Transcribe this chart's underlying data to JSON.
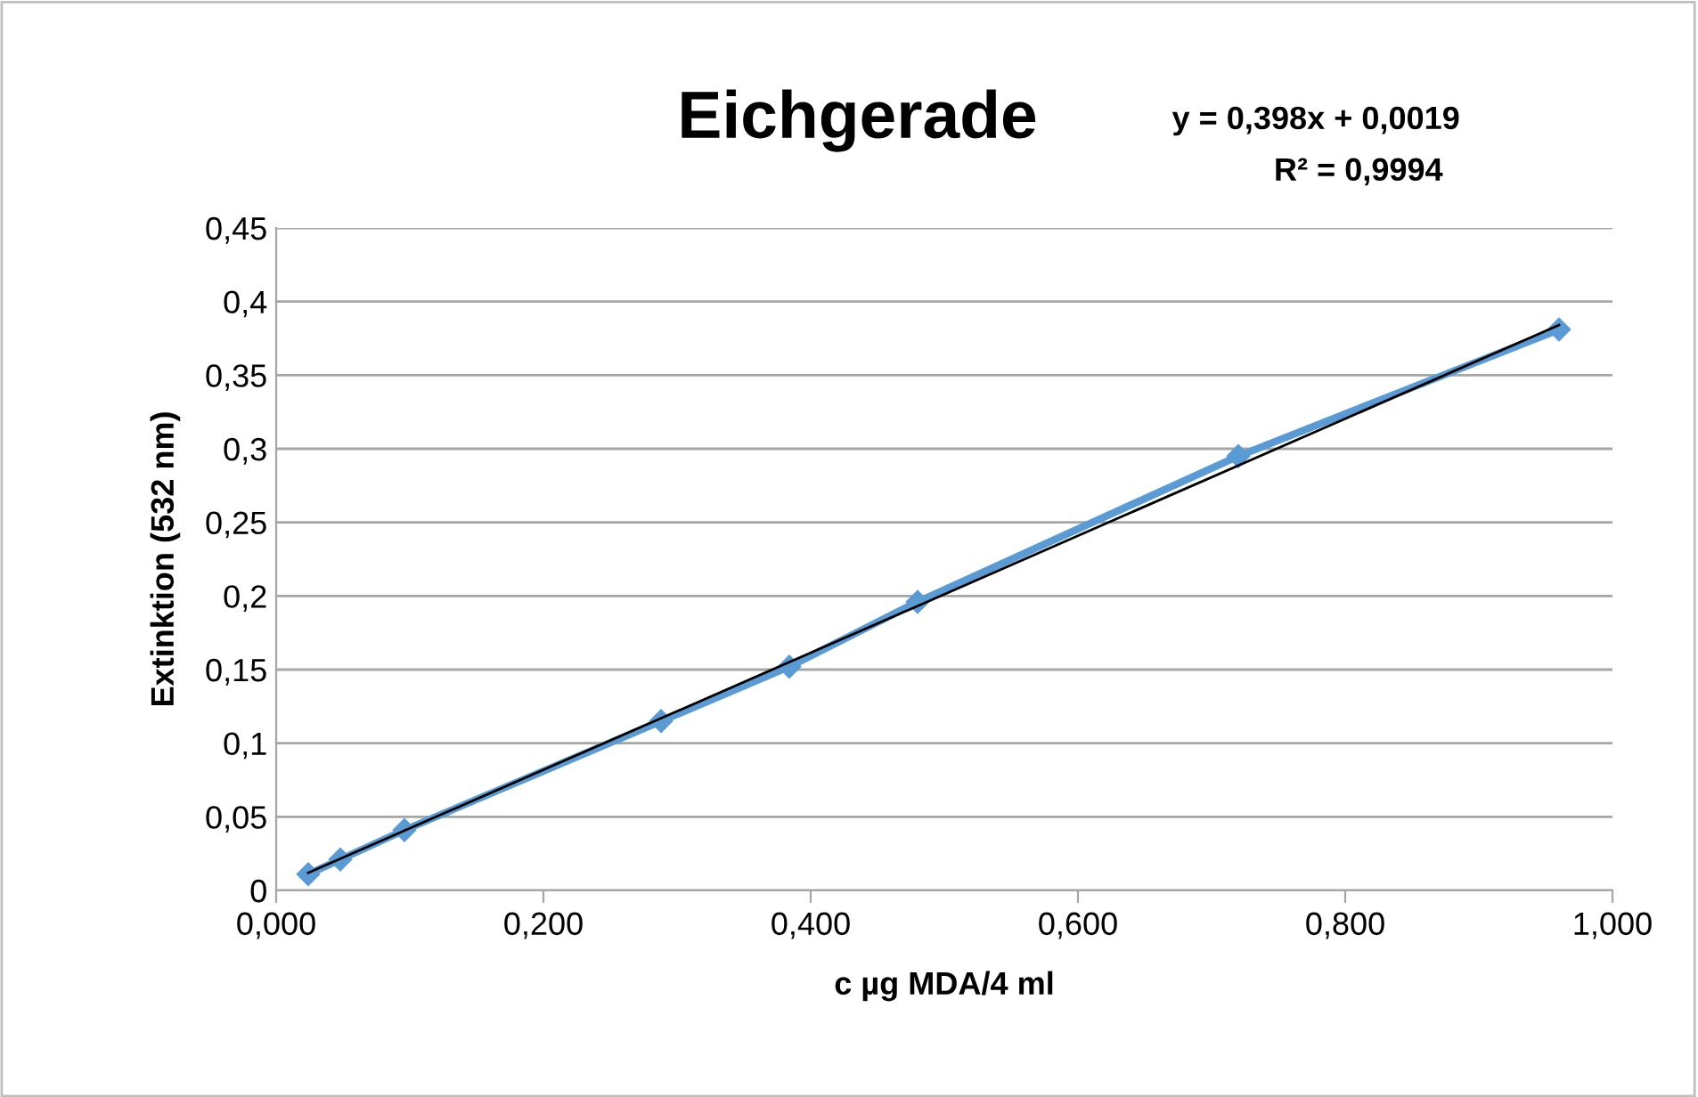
{
  "chart_data": {
    "type": "line",
    "title": "Eichgerade",
    "xlabel": "c µg MDA/4 ml",
    "ylabel": "Extinktion (532 nm)",
    "annotations": [
      "y = 0,398x + 0,0019",
      "R² = 0,9994"
    ],
    "series": [
      {
        "type": "line",
        "color": "#5b9bd5",
        "marker": "diamond",
        "line_style": "solid",
        "x": [
          0.024,
          0.048,
          0.096,
          0.288,
          0.384,
          0.48,
          0.72,
          0.96
        ],
        "values": [
          0.011,
          0.021,
          0.041,
          0.115,
          0.152,
          0.196,
          0.295,
          0.381
        ]
      },
      {
        "type": "line",
        "color": "#000000",
        "marker": "none",
        "line_style": "solid",
        "x": [
          0.024,
          0.96
        ],
        "values": [
          0.012,
          0.384
        ]
      }
    ],
    "xlim": [
      0,
      1
    ],
    "xticks": [
      {
        "value": 0,
        "label": "0,000"
      },
      {
        "value": 0.2,
        "label": "0,200"
      },
      {
        "value": 0.4,
        "label": "0,400"
      },
      {
        "value": 0.6,
        "label": "0,600"
      },
      {
        "value": 0.8,
        "label": "0,800"
      },
      {
        "value": 1,
        "label": "1,000"
      }
    ],
    "ylim": [
      0,
      0.45
    ],
    "yticks": [
      0,
      {
        "value": 0.05,
        "label": "0,05"
      },
      {
        "value": 0.1,
        "label": "0,1"
      },
      {
        "value": 0.15,
        "label": "0,15"
      },
      {
        "value": 0.2,
        "label": "0,2"
      },
      {
        "value": 0.25,
        "label": "0,25"
      },
      {
        "value": 0.3,
        "label": "0,3"
      },
      {
        "value": 0.35,
        "label": "0,35"
      },
      {
        "value": 0.4,
        "label": "0,4"
      },
      {
        "value": 0.45,
        "label": "0,45"
      }
    ],
    "grid": "y",
    "legend": false
  }
}
